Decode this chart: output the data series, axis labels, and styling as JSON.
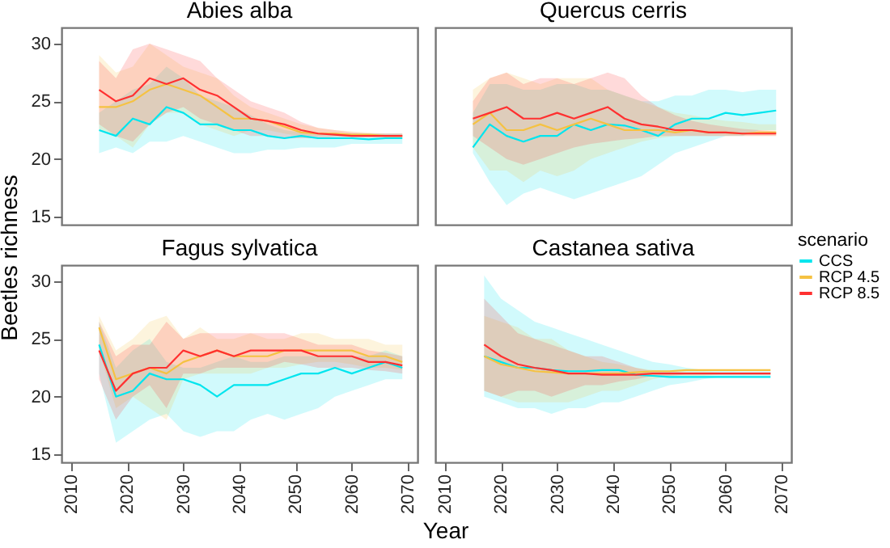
{
  "chart_data": [
    {
      "type": "line",
      "title": "Abies alba",
      "ylabel": "Beetles richness",
      "x": [
        2015,
        2018,
        2021,
        2024,
        2027,
        2030,
        2033,
        2036,
        2039,
        2042,
        2045,
        2048,
        2051,
        2054,
        2057,
        2060,
        2063,
        2066,
        2069
      ],
      "xlim": [
        2008.3,
        2071.7
      ],
      "ylim": [
        14.3,
        31.4
      ],
      "xticks": [
        2010,
        2020,
        2030,
        2040,
        2050,
        2060,
        2070
      ],
      "yticks": [
        15,
        20,
        25,
        30
      ],
      "tick_labels": "y",
      "line_style": "solid",
      "grid": false,
      "series": [
        {
          "color": "#00e5ee",
          "values": [
            22.5,
            22,
            23.5,
            23,
            24.5,
            24,
            23,
            23,
            22.5,
            22.5,
            22,
            21.8,
            22,
            21.8,
            21.8,
            21.8,
            21.7,
            21.8,
            21.8
          ],
          "lower": [
            20.5,
            21,
            20.5,
            21.5,
            21.5,
            22,
            21.5,
            21,
            20.5,
            20.5,
            20.8,
            20.8,
            21,
            21,
            21,
            21.3,
            21.3,
            21.3,
            21.3
          ],
          "upper": [
            24,
            25,
            26,
            26.5,
            28,
            27,
            25.5,
            25,
            24.5,
            23.8,
            23,
            22.5,
            22.3,
            22.2,
            22.2,
            22.2,
            22.2,
            22.2,
            22.2
          ]
        },
        {
          "color": "#f5c242",
          "values": [
            24.5,
            24.5,
            25,
            26,
            26.5,
            26,
            25.5,
            24.5,
            23.5,
            23.5,
            23.3,
            22.8,
            22.3,
            22.2,
            22.2,
            22.1,
            22.1,
            22,
            22
          ],
          "lower": [
            22.5,
            22,
            21,
            23,
            24,
            24,
            23,
            22.5,
            22,
            22.5,
            22.5,
            22.2,
            22,
            22,
            22,
            21.9,
            21.9,
            21.9,
            21.9
          ],
          "upper": [
            29,
            27.5,
            28,
            30,
            29,
            28,
            27.5,
            27,
            25.5,
            24.5,
            24,
            23.5,
            23,
            22.7,
            22.5,
            22.4,
            22.3,
            22.2,
            22.2
          ]
        },
        {
          "color": "#ff3030",
          "values": [
            26,
            25,
            25.5,
            27,
            26.5,
            27,
            26,
            25.5,
            24.5,
            23.5,
            23.3,
            23,
            22.5,
            22.2,
            22.1,
            22,
            22,
            22,
            22
          ],
          "lower": [
            23,
            22,
            21.5,
            23,
            24,
            24.5,
            23.5,
            23,
            22.5,
            22,
            22,
            21.8,
            21.8,
            21.8,
            21.9,
            21.9,
            21.9,
            21.9,
            21.9
          ],
          "upper": [
            28.5,
            27,
            29.5,
            30,
            29.5,
            29,
            28.5,
            27,
            26,
            25,
            24.5,
            24,
            23.2,
            22.7,
            22.5,
            22.3,
            22.2,
            22.2,
            22.2
          ]
        }
      ]
    },
    {
      "type": "line",
      "title": "Quercus cerris",
      "legend_title": "scenario",
      "legend": "right",
      "x": [
        2015,
        2018,
        2021,
        2024,
        2027,
        2030,
        2033,
        2036,
        2039,
        2042,
        2045,
        2048,
        2051,
        2054,
        2057,
        2060,
        2063,
        2066,
        2069
      ],
      "xlim": [
        2008.3,
        2071.7
      ],
      "ylim": [
        14.3,
        31.4
      ],
      "xticks": [
        2010,
        2020,
        2030,
        2040,
        2050,
        2060,
        2070
      ],
      "yticks": [
        15,
        20,
        25,
        30
      ],
      "tick_labels": false,
      "line_style": "solid",
      "grid": false,
      "series": [
        {
          "name": "CCS",
          "color": "#00e5ee",
          "values": [
            21,
            23,
            22,
            21.5,
            22,
            22,
            23,
            22.5,
            23,
            22.9,
            22.5,
            22,
            23,
            23.5,
            23.5,
            24,
            23.8,
            24,
            24.2
          ],
          "lower": [
            20.5,
            18,
            16,
            17,
            17.5,
            17,
            16.5,
            17,
            17.5,
            18,
            18.5,
            19.5,
            20.5,
            21,
            21.5,
            22,
            22,
            22.5,
            22.5
          ],
          "upper": [
            24,
            26.5,
            26.5,
            26,
            26,
            26.5,
            26.5,
            26,
            26,
            25.5,
            25,
            25,
            25.5,
            25.5,
            26,
            26,
            25.8,
            26,
            26
          ]
        },
        {
          "name": "RCP 4.5",
          "color": "#f5c242",
          "values": [
            23,
            24,
            22.5,
            22.5,
            23,
            22.5,
            23,
            23.5,
            23,
            22.5,
            22.5,
            22.5,
            22.3,
            22.5,
            22.3,
            22.3,
            22.2,
            22.3,
            22.3
          ],
          "lower": [
            21,
            19,
            19,
            18,
            19,
            18.5,
            19,
            20,
            20.5,
            21,
            21.5,
            21.8,
            22,
            22,
            22,
            22,
            22,
            22,
            22
          ],
          "upper": [
            26,
            27,
            27.5,
            27,
            26.5,
            27,
            27,
            27,
            26,
            25.5,
            25,
            24.5,
            24,
            23.8,
            23.5,
            23.3,
            23.2,
            23,
            23
          ]
        },
        {
          "name": "RCP 8.5",
          "color": "#ff3030",
          "values": [
            23.5,
            24,
            24.5,
            23.5,
            23.5,
            24,
            23.5,
            24,
            24.5,
            23.5,
            23,
            22.8,
            22.5,
            22.5,
            22.3,
            22.3,
            22.2,
            22.2,
            22.2
          ],
          "lower": [
            22,
            21,
            20,
            19.5,
            20,
            20.5,
            21,
            21.3,
            21.5,
            21.7,
            21.8,
            22,
            22,
            22,
            22,
            22,
            22,
            22,
            22
          ],
          "upper": [
            25,
            27,
            27.5,
            26.5,
            27,
            27,
            26.5,
            27,
            27.5,
            27,
            25.5,
            24.5,
            23.8,
            23.3,
            23,
            22.8,
            22.6,
            22.5,
            22.4
          ]
        }
      ]
    },
    {
      "type": "line",
      "title": "Fagus sylvatica",
      "x": [
        2015,
        2018,
        2021,
        2024,
        2027,
        2030,
        2033,
        2036,
        2039,
        2042,
        2045,
        2048,
        2051,
        2054,
        2057,
        2060,
        2063,
        2066,
        2069
      ],
      "xlim": [
        2008.3,
        2071.7
      ],
      "ylim": [
        14.3,
        31.4
      ],
      "xticks": [
        2010,
        2020,
        2030,
        2040,
        2050,
        2060,
        2070
      ],
      "yticks": [
        15,
        20,
        25,
        30
      ],
      "line_style": "solid",
      "grid": false,
      "series": [
        {
          "color": "#00e5ee",
          "values": [
            24.5,
            20,
            20.5,
            22,
            21.5,
            21.5,
            21,
            20,
            21,
            21,
            21,
            21.5,
            22,
            22,
            22.5,
            22,
            22.5,
            23,
            22.5
          ],
          "lower": [
            22,
            16,
            17,
            18,
            18.5,
            17,
            16.5,
            17,
            17,
            18,
            18.5,
            18,
            18.5,
            19,
            20,
            20.5,
            21,
            21.5,
            21.5
          ],
          "upper": [
            26.5,
            22.5,
            24,
            25,
            23,
            22.5,
            22.5,
            23,
            23.5,
            23,
            23,
            23.5,
            23.5,
            23.5,
            23.5,
            23.5,
            23.5,
            24,
            23.5
          ]
        },
        {
          "color": "#f5c242",
          "values": [
            26,
            21.5,
            22,
            22.5,
            22,
            23,
            23.5,
            24,
            23.5,
            23.5,
            23.5,
            24,
            24,
            24,
            24,
            24,
            23.5,
            23.5,
            23
          ],
          "lower": [
            24,
            19,
            20,
            19,
            18,
            21.5,
            22,
            22,
            22,
            22,
            22.5,
            22.5,
            22.8,
            23,
            23,
            22.8,
            22.5,
            22.5,
            22.3
          ],
          "upper": [
            27,
            24,
            25,
            26.5,
            27,
            25,
            26,
            25,
            25,
            25.5,
            25,
            25,
            25.5,
            25.5,
            25,
            25,
            25,
            24.5,
            24.5
          ]
        },
        {
          "color": "#ff3030",
          "values": [
            24,
            20.5,
            22,
            22.5,
            22.5,
            24,
            23.5,
            24,
            23.5,
            24,
            24,
            24,
            24,
            23.5,
            23.5,
            23.5,
            23,
            23,
            22.7
          ],
          "lower": [
            21.5,
            18,
            20,
            21,
            19,
            22,
            22,
            22.5,
            22.5,
            22.5,
            22.5,
            23,
            22.8,
            22.5,
            22.5,
            22.5,
            22.3,
            22.2,
            22
          ],
          "upper": [
            26.5,
            23.5,
            24.5,
            24.5,
            26.5,
            25,
            25.5,
            25.5,
            25.5,
            25.5,
            25.5,
            25.5,
            25,
            24.5,
            24.5,
            24.5,
            24,
            23.8,
            23.5
          ]
        }
      ]
    },
    {
      "type": "line",
      "title": "Castanea sativa",
      "xlabel": "Year",
      "x": [
        2017,
        2020,
        2023,
        2026,
        2029,
        2032,
        2035,
        2038,
        2041,
        2044,
        2047,
        2050,
        2053,
        2056,
        2059,
        2062,
        2065,
        2068
      ],
      "xlim": [
        2008.3,
        2071.7
      ],
      "ylim": [
        14.3,
        31.4
      ],
      "xticks": [
        2010,
        2020,
        2030,
        2040,
        2050,
        2060,
        2070
      ],
      "yticks": [
        15,
        20,
        25,
        30
      ],
      "tick_labels": "x",
      "line_style": "solid",
      "grid": false,
      "series": [
        {
          "color": "#00e5ee",
          "values": [
            23.5,
            23,
            22.5,
            22.5,
            22.3,
            22.2,
            22.2,
            22.3,
            22.3,
            21.9,
            21.8,
            21.7,
            21.7,
            21.7,
            21.7,
            21.7,
            21.7,
            21.7
          ],
          "lower": [
            20,
            19.5,
            19,
            19,
            18.5,
            19,
            19,
            19.5,
            19.5,
            20,
            20.5,
            21,
            21.2,
            21.5,
            21.7,
            21.7,
            21.8,
            21.8
          ],
          "upper": [
            30.5,
            28.5,
            27.5,
            26.5,
            26,
            25.5,
            25,
            24.5,
            24,
            23.5,
            23,
            22.8,
            22.5,
            22.3,
            22.3,
            22.2,
            22.2,
            22.2
          ]
        },
        {
          "color": "#f5c242",
          "values": [
            23.5,
            22.8,
            22.5,
            22.2,
            22.1,
            22,
            22,
            22,
            22,
            22.1,
            22.2,
            22.2,
            22.3,
            22.3,
            22.3,
            22.3,
            22.3,
            22.3
          ],
          "lower": [
            20.5,
            20,
            19.5,
            19.5,
            19.5,
            19.5,
            20,
            20.5,
            20.5,
            21,
            21.5,
            21.8,
            21.8,
            21.8,
            21.9,
            21.9,
            21.9,
            21.9
          ],
          "upper": [
            27,
            26.5,
            26,
            25,
            25,
            24,
            23.5,
            23,
            22.8,
            22.5,
            22.3,
            22.2,
            22.2,
            22.2,
            22.1,
            22.1,
            22.1,
            22.1
          ]
        },
        {
          "color": "#ff3030",
          "values": [
            24.5,
            23.5,
            22.8,
            22.5,
            22.3,
            22,
            22,
            21.9,
            21.9,
            21.9,
            22,
            22,
            22,
            22,
            22,
            22,
            22,
            22
          ],
          "lower": [
            20.5,
            20,
            20.5,
            20.5,
            20,
            20.5,
            21,
            21,
            21.3,
            21.5,
            21.8,
            21.8,
            21.9,
            21.9,
            21.9,
            21.9,
            21.9,
            21.9
          ],
          "upper": [
            28.5,
            27,
            25.5,
            25,
            24.5,
            24,
            23.5,
            23.5,
            23,
            22.5,
            22.2,
            22.2,
            22.1,
            22.1,
            22.1,
            22.1,
            22.1,
            22.1
          ]
        }
      ]
    }
  ]
}
